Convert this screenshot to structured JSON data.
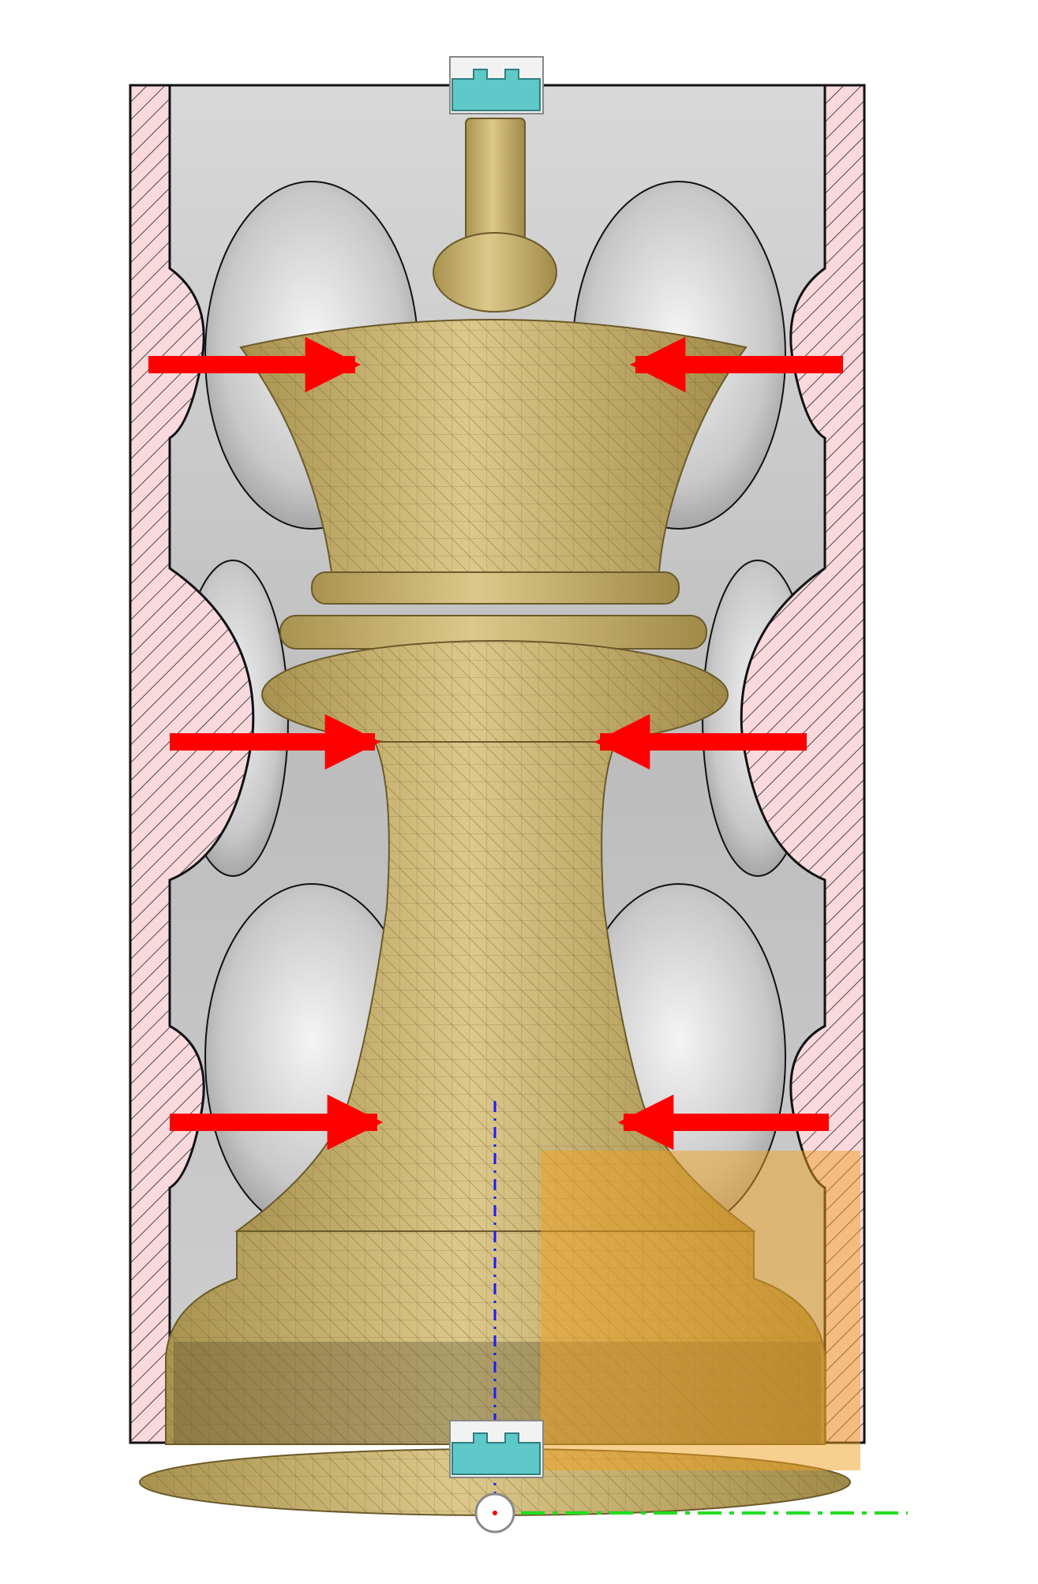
{
  "scene": {
    "title": "",
    "description_labels": [],
    "arrow_color": "#ff0000",
    "wall_fill": "#f9d9dc",
    "hatch_color": "#222222",
    "piece_color": "#cbb776",
    "piece_mesh_color": "#6b5a2a",
    "cavity_color": "#c9c9c9",
    "highlight_box_color": "#f0a020",
    "axis_color": "#1a1aff",
    "ground_axis_color": "#22dd22",
    "clip_color": "#5fc8c8",
    "icons": [
      "press-arrow",
      "clip-connector",
      "origin-marker"
    ]
  }
}
